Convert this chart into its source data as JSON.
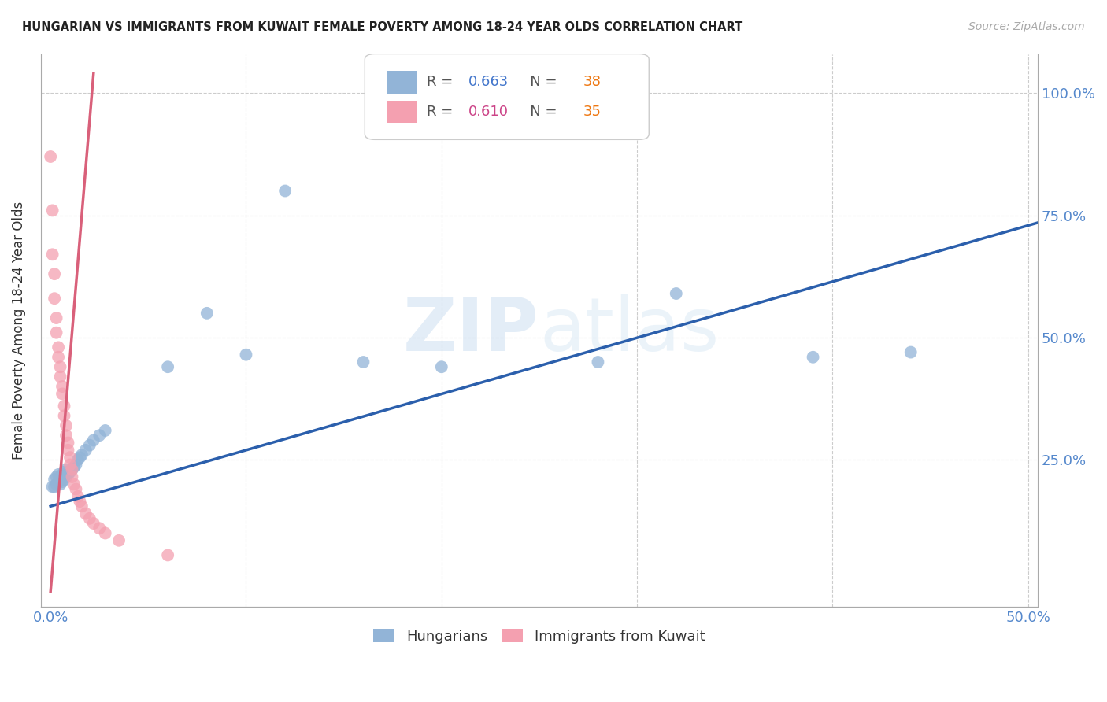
{
  "title": "HUNGARIAN VS IMMIGRANTS FROM KUWAIT FEMALE POVERTY AMONG 18-24 YEAR OLDS CORRELATION CHART",
  "source": "Source: ZipAtlas.com",
  "ylabel": "Female Poverty Among 18-24 Year Olds",
  "xlim": [
    -0.005,
    0.505
  ],
  "ylim": [
    -0.05,
    1.08
  ],
  "blue_R": "0.663",
  "blue_N": "38",
  "pink_R": "0.610",
  "pink_N": "35",
  "blue_color": "#92B4D7",
  "pink_color": "#F4A0B0",
  "blue_line_color": "#2B5FAC",
  "pink_line_color": "#D9607A",
  "watermark_zip": "ZIP",
  "watermark_atlas": "atlas",
  "background_color": "#FFFFFF",
  "grid_color": "#CCCCCC",
  "blue_points_x": [
    0.001,
    0.002,
    0.002,
    0.003,
    0.003,
    0.004,
    0.004,
    0.005,
    0.005,
    0.006,
    0.006,
    0.007,
    0.007,
    0.008,
    0.008,
    0.009,
    0.01,
    0.011,
    0.012,
    0.013,
    0.014,
    0.015,
    0.016,
    0.018,
    0.02,
    0.022,
    0.025,
    0.028,
    0.06,
    0.08,
    0.1,
    0.12,
    0.16,
    0.2,
    0.28,
    0.32,
    0.39,
    0.44
  ],
  "blue_points_y": [
    0.195,
    0.195,
    0.21,
    0.2,
    0.215,
    0.205,
    0.22,
    0.2,
    0.215,
    0.205,
    0.22,
    0.21,
    0.225,
    0.215,
    0.23,
    0.22,
    0.225,
    0.23,
    0.235,
    0.24,
    0.25,
    0.255,
    0.26,
    0.27,
    0.28,
    0.29,
    0.3,
    0.31,
    0.44,
    0.55,
    0.465,
    0.8,
    0.45,
    0.44,
    0.45,
    0.59,
    0.46,
    0.47
  ],
  "pink_points_x": [
    0.0,
    0.001,
    0.001,
    0.002,
    0.002,
    0.003,
    0.003,
    0.004,
    0.004,
    0.005,
    0.005,
    0.006,
    0.006,
    0.007,
    0.007,
    0.008,
    0.008,
    0.009,
    0.009,
    0.01,
    0.01,
    0.011,
    0.011,
    0.012,
    0.013,
    0.014,
    0.015,
    0.016,
    0.018,
    0.02,
    0.022,
    0.025,
    0.028,
    0.035,
    0.06
  ],
  "pink_points_y": [
    0.87,
    0.76,
    0.67,
    0.63,
    0.58,
    0.54,
    0.51,
    0.48,
    0.46,
    0.44,
    0.42,
    0.4,
    0.385,
    0.36,
    0.34,
    0.32,
    0.3,
    0.285,
    0.27,
    0.255,
    0.24,
    0.23,
    0.215,
    0.2,
    0.19,
    0.175,
    0.165,
    0.155,
    0.14,
    0.13,
    0.12,
    0.11,
    0.1,
    0.085,
    0.055
  ],
  "pink_line_x0": 0.0,
  "pink_line_y0": -0.02,
  "pink_line_x1": 0.022,
  "pink_line_y1": 1.04,
  "blue_line_x0": 0.0,
  "blue_line_y0": 0.155,
  "blue_line_x1": 0.505,
  "blue_line_y1": 0.735
}
